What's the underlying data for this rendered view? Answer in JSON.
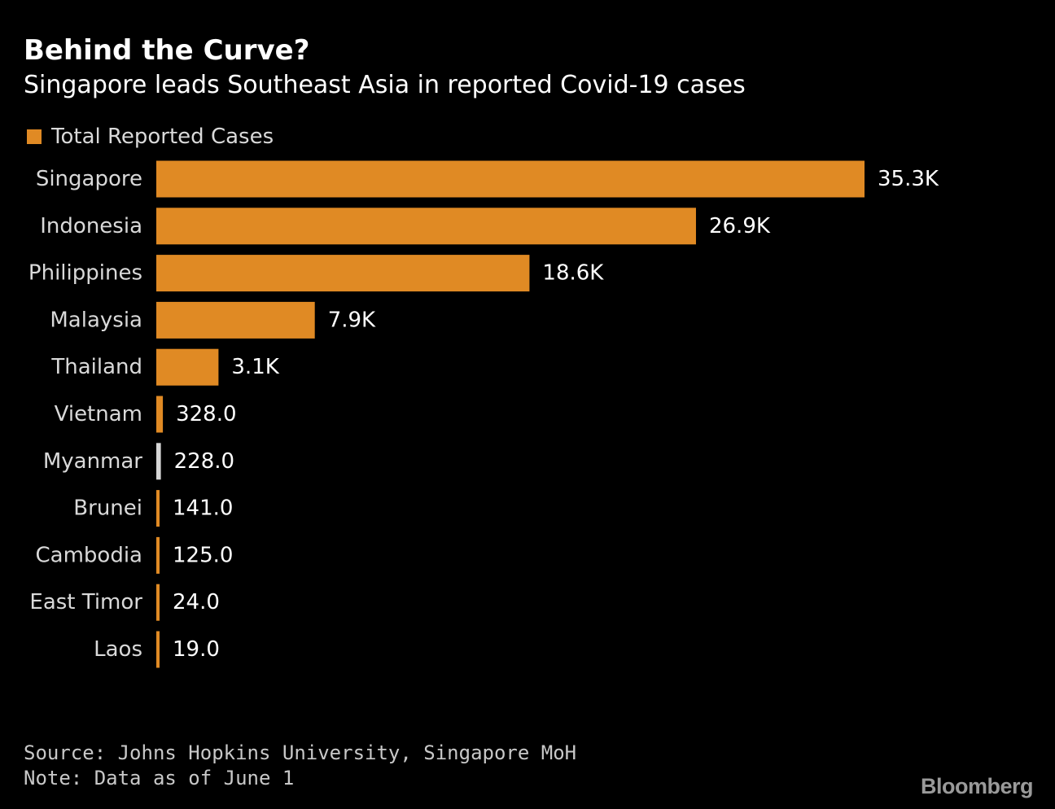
{
  "title": "Behind the Curve?",
  "subtitle": "Singapore leads Southeast Asia in reported Covid-19 cases",
  "legend": {
    "label": "Total Reported Cases",
    "color": "#e08a24"
  },
  "colors": {
    "bar": "#e08a24",
    "highlight_bar": "#d6d6d6",
    "label": "#d9d9d9",
    "value": "#ffffff"
  },
  "chart_data": {
    "type": "bar",
    "orientation": "horizontal",
    "title": "Behind the Curve?",
    "subtitle": "Singapore leads Southeast Asia in reported Covid-19 cases",
    "categories": [
      "Singapore",
      "Indonesia",
      "Philippines",
      "Malaysia",
      "Thailand",
      "Vietnam",
      "Myanmar",
      "Brunei",
      "Cambodia",
      "East Timor",
      "Laos"
    ],
    "series": [
      {
        "name": "Total Reported Cases",
        "values": [
          35300,
          26900,
          18600,
          7900,
          3100,
          328,
          228,
          141,
          125,
          24,
          19
        ]
      }
    ],
    "value_labels": [
      "35.3K",
      "26.9K",
      "18.6K",
      "7.9K",
      "3.1K",
      "328.0",
      "228.0",
      "141.0",
      "125.0",
      "24.0",
      "19.0"
    ],
    "highlighted_category": "Myanmar",
    "xlabel": "",
    "ylabel": "",
    "xlim": [
      0,
      35300
    ],
    "grid": false,
    "legend_position": "top-left"
  },
  "footer": {
    "source": "Source: Johns Hopkins University, Singapore MoH",
    "note": "Note: Data as of June 1",
    "logo": "Bloomberg"
  }
}
